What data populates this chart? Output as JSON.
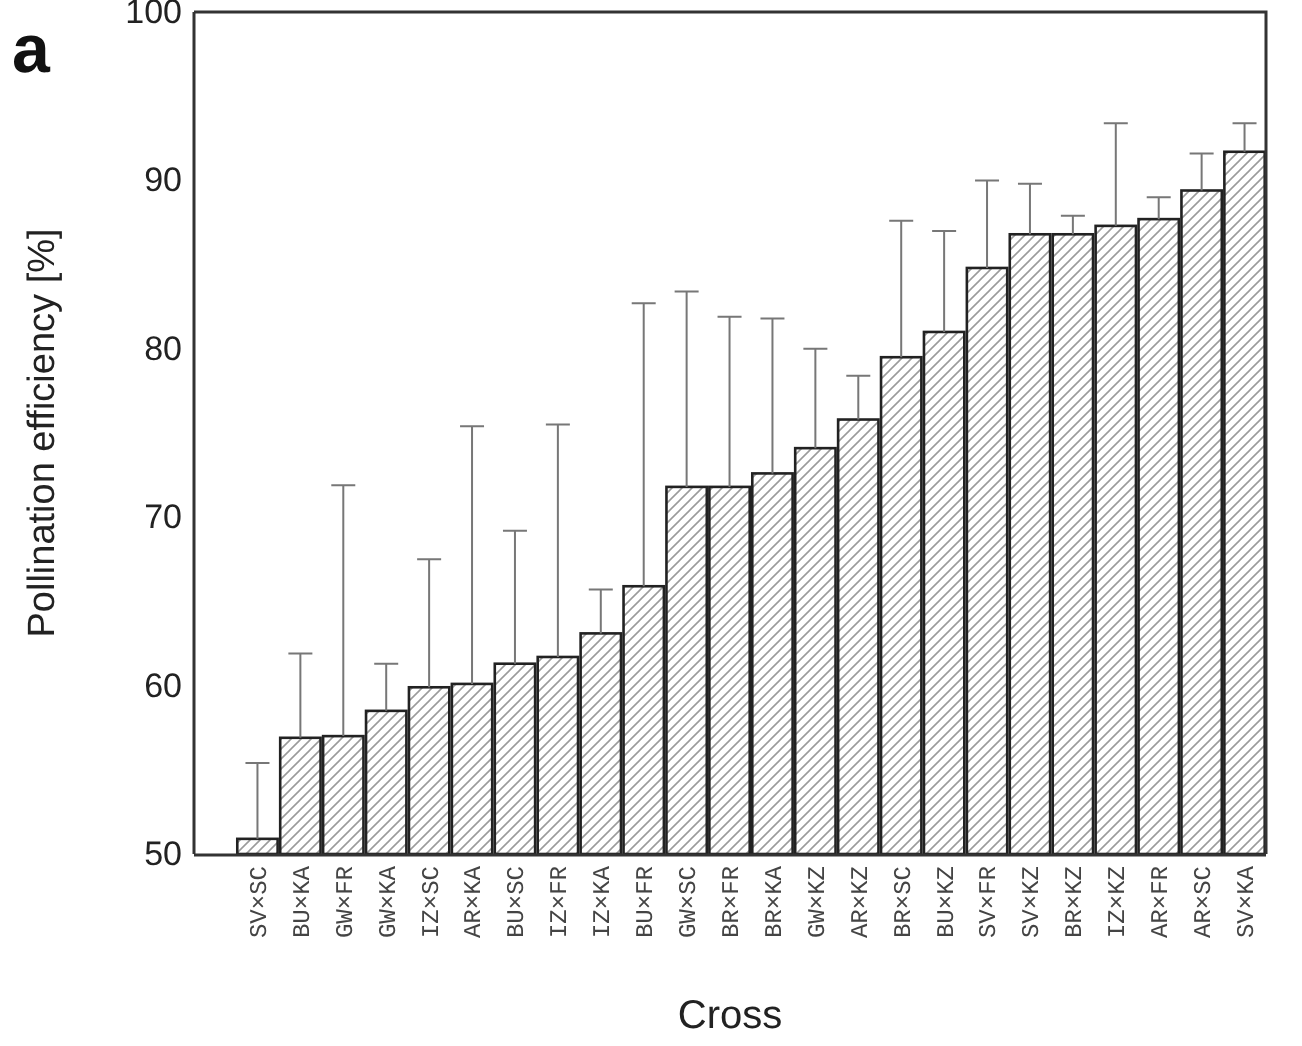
{
  "chart_data": {
    "type": "bar",
    "xlabel": "Cross",
    "ylabel": "Pollination efficiency [%]",
    "annotations": [
      "a"
    ],
    "categories": [
      "SV×SC",
      "BU×KA",
      "GW×FR",
      "GW×KA",
      "IZ×SC",
      "AR×KA",
      "BU×SC",
      "IZ×FR",
      "IZ×KA",
      "BU×FR",
      "GW×SC",
      "BR×FR",
      "BR×KA",
      "GW×KZ",
      "AR×KZ",
      "BR×SC",
      "BU×KZ",
      "SV×FR",
      "SV×KZ",
      "BR×KZ",
      "IZ×KZ",
      "AR×FR",
      "AR×SC",
      "SV×KA"
    ],
    "values": [
      50.9,
      56.9,
      57.0,
      58.5,
      59.9,
      60.1,
      61.3,
      61.7,
      63.1,
      65.9,
      71.8,
      71.8,
      72.6,
      74.1,
      75.8,
      79.5,
      81.0,
      84.8,
      86.8,
      86.8,
      87.3,
      87.7,
      89.4,
      91.7
    ],
    "errors": [
      [
        50.9,
        55.4
      ],
      [
        56.9,
        61.9
      ],
      [
        57.0,
        71.9
      ],
      [
        58.5,
        61.3
      ],
      [
        59.9,
        67.5
      ],
      [
        60.1,
        75.4
      ],
      [
        61.3,
        69.2
      ],
      [
        61.7,
        75.5
      ],
      [
        63.1,
        65.7
      ],
      [
        65.9,
        82.7
      ],
      [
        71.8,
        83.4
      ],
      [
        71.8,
        81.9
      ],
      [
        72.6,
        81.8
      ],
      [
        74.1,
        80.0
      ],
      [
        75.8,
        78.4
      ],
      [
        79.5,
        87.6
      ],
      [
        81.0,
        87.0
      ],
      [
        84.8,
        90.0
      ],
      [
        86.8,
        89.8
      ],
      [
        86.8,
        87.9
      ],
      [
        87.3,
        93.4
      ],
      [
        87.7,
        89.0
      ],
      [
        89.4,
        91.6
      ],
      [
        91.7,
        93.4
      ]
    ],
    "color": "#222222",
    "ylim": [
      50,
      100
    ],
    "yticks": [
      50,
      60,
      70,
      80,
      90,
      100
    ],
    "grid": false
  }
}
